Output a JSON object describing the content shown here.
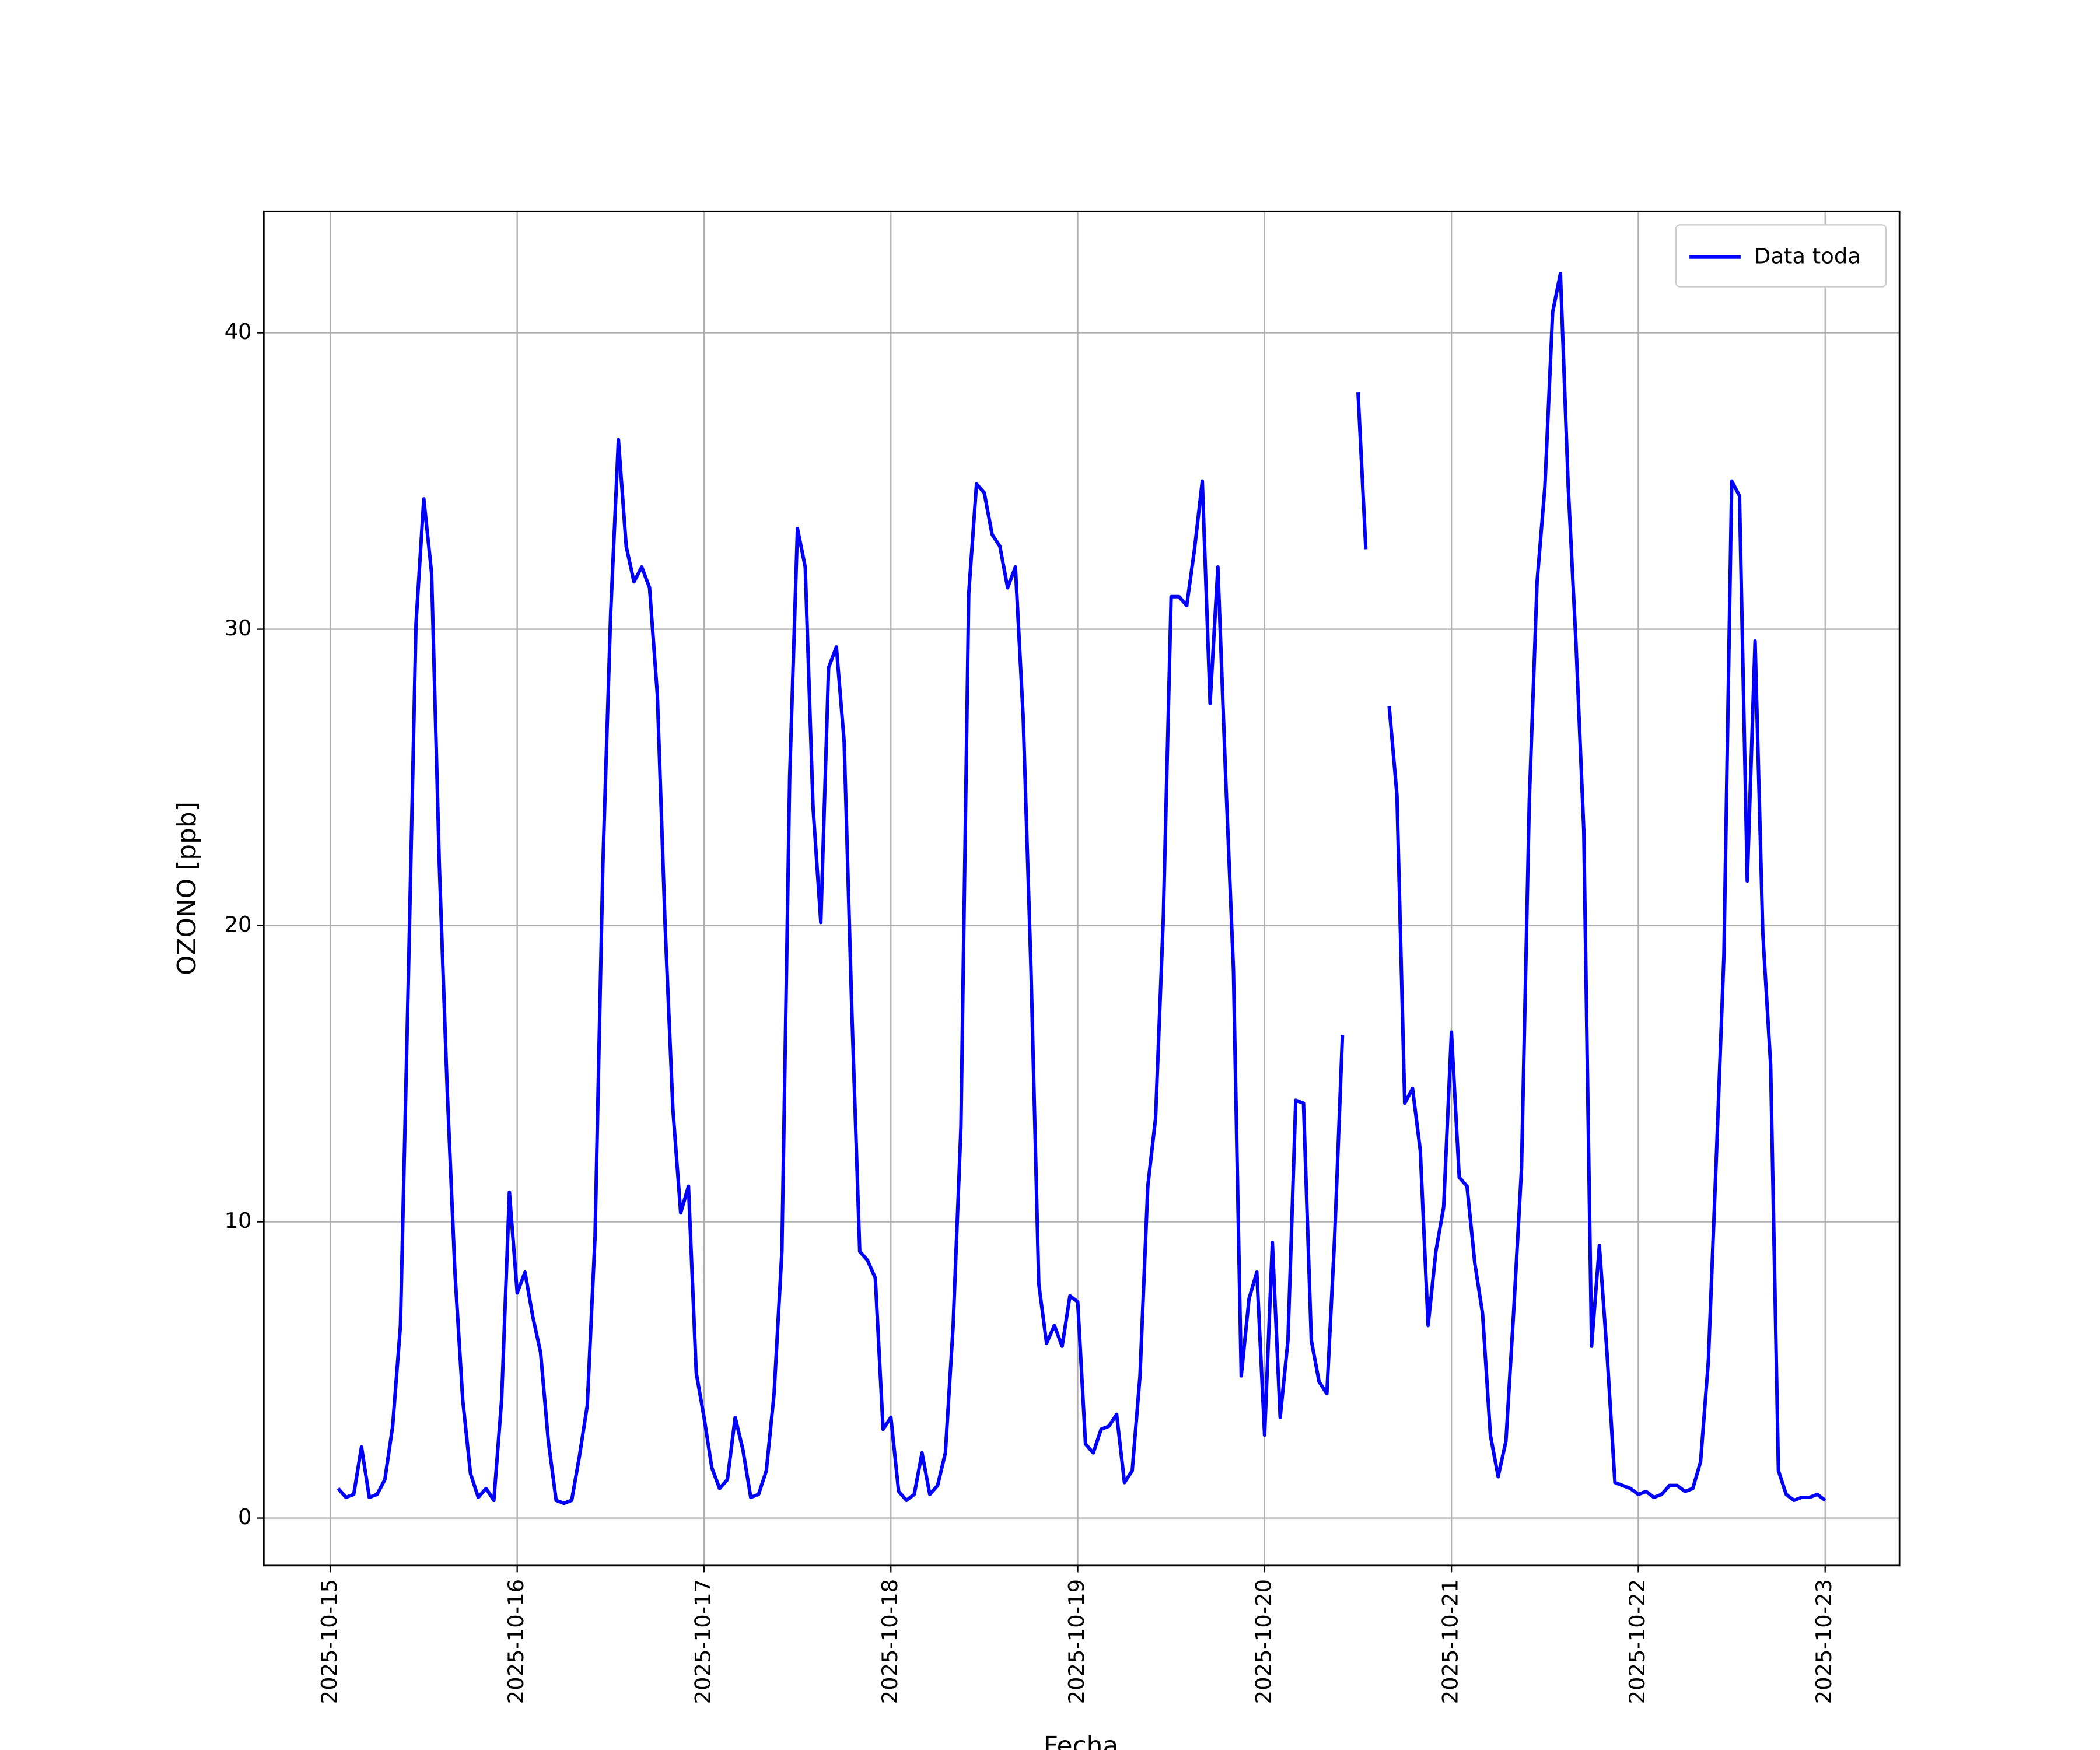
{
  "chart_data": {
    "type": "line",
    "xlabel": "Fecha",
    "ylabel": "OZONO [ppb]",
    "grid": true,
    "legend": "upper right",
    "xlim": [
      "2025-10-14 15:27",
      "2025-10-23 09:33"
    ],
    "xticks": [
      "2025-10-15",
      "2025-10-16",
      "2025-10-17",
      "2025-10-18",
      "2025-10-19",
      "2025-10-20",
      "2025-10-21",
      "2025-10-22",
      "2025-10-23"
    ],
    "ylim": [
      -1.6,
      44.1
    ],
    "yticks": [
      0,
      10,
      20,
      30,
      40
    ],
    "x": [
      "2025-10-15 01:00",
      "2025-10-15 02:00",
      "2025-10-15 03:00",
      "2025-10-15 04:00",
      "2025-10-15 05:00",
      "2025-10-15 06:00",
      "2025-10-15 07:00",
      "2025-10-15 08:00",
      "2025-10-15 09:00",
      "2025-10-15 10:00",
      "2025-10-15 11:00",
      "2025-10-15 12:00",
      "2025-10-15 13:00",
      "2025-10-15 14:00",
      "2025-10-15 15:00",
      "2025-10-15 16:00",
      "2025-10-15 17:00",
      "2025-10-15 18:00",
      "2025-10-15 19:00",
      "2025-10-15 20:00",
      "2025-10-15 21:00",
      "2025-10-15 22:00",
      "2025-10-15 23:00",
      "2025-10-16 00:00",
      "2025-10-16 01:00",
      "2025-10-16 02:00",
      "2025-10-16 03:00",
      "2025-10-16 04:00",
      "2025-10-16 05:00",
      "2025-10-16 06:00",
      "2025-10-16 07:00",
      "2025-10-16 08:00",
      "2025-10-16 09:00",
      "2025-10-16 10:00",
      "2025-10-16 11:00",
      "2025-10-16 12:00",
      "2025-10-16 13:00",
      "2025-10-16 14:00",
      "2025-10-16 15:00",
      "2025-10-16 16:00",
      "2025-10-16 17:00",
      "2025-10-16 18:00",
      "2025-10-16 19:00",
      "2025-10-16 20:00",
      "2025-10-16 21:00",
      "2025-10-16 22:00",
      "2025-10-16 23:00",
      "2025-10-17 00:00",
      "2025-10-17 01:00",
      "2025-10-17 02:00",
      "2025-10-17 03:00",
      "2025-10-17 04:00",
      "2025-10-17 05:00",
      "2025-10-17 06:00",
      "2025-10-17 07:00",
      "2025-10-17 08:00",
      "2025-10-17 09:00",
      "2025-10-17 10:00",
      "2025-10-17 11:00",
      "2025-10-17 12:00",
      "2025-10-17 13:00",
      "2025-10-17 14:00",
      "2025-10-17 15:00",
      "2025-10-17 16:00",
      "2025-10-17 17:00",
      "2025-10-17 18:00",
      "2025-10-17 19:00",
      "2025-10-17 20:00",
      "2025-10-17 21:00",
      "2025-10-17 22:00",
      "2025-10-17 23:00",
      "2025-10-18 00:00",
      "2025-10-18 01:00",
      "2025-10-18 02:00",
      "2025-10-18 03:00",
      "2025-10-18 04:00",
      "2025-10-18 05:00",
      "2025-10-18 06:00",
      "2025-10-18 07:00",
      "2025-10-18 08:00",
      "2025-10-18 09:00",
      "2025-10-18 10:00",
      "2025-10-18 11:00",
      "2025-10-18 12:00",
      "2025-10-18 13:00",
      "2025-10-18 14:00",
      "2025-10-18 15:00",
      "2025-10-18 16:00",
      "2025-10-18 17:00",
      "2025-10-18 18:00",
      "2025-10-18 19:00",
      "2025-10-18 20:00",
      "2025-10-18 21:00",
      "2025-10-18 22:00",
      "2025-10-18 23:00",
      "2025-10-19 00:00",
      "2025-10-19 01:00",
      "2025-10-19 02:00",
      "2025-10-19 03:00",
      "2025-10-19 04:00",
      "2025-10-19 05:00",
      "2025-10-19 06:00",
      "2025-10-19 07:00",
      "2025-10-19 08:00",
      "2025-10-19 09:00",
      "2025-10-19 10:00",
      "2025-10-19 11:00",
      "2025-10-19 12:00",
      "2025-10-19 13:00",
      "2025-10-19 14:00",
      "2025-10-19 15:00",
      "2025-10-19 16:00",
      "2025-10-19 17:00",
      "2025-10-19 18:00",
      "2025-10-19 19:00",
      "2025-10-19 20:00",
      "2025-10-19 21:00",
      "2025-10-19 22:00",
      "2025-10-19 23:00",
      "2025-10-20 00:00",
      "2025-10-20 01:00",
      "2025-10-20 02:00",
      "2025-10-20 03:00",
      "2025-10-20 04:00",
      "2025-10-20 05:00",
      "2025-10-20 06:00",
      "2025-10-20 07:00",
      "2025-10-20 08:00",
      "2025-10-20 09:00",
      "2025-10-20 10:00",
      "2025-10-20 11:00",
      "2025-10-20 12:00",
      "2025-10-20 13:00",
      "2025-10-20 14:00",
      "2025-10-20 15:00",
      "2025-10-20 16:00",
      "2025-10-20 17:00",
      "2025-10-20 18:00",
      "2025-10-20 19:00",
      "2025-10-20 20:00",
      "2025-10-20 21:00",
      "2025-10-20 22:00",
      "2025-10-20 23:00",
      "2025-10-21 00:00",
      "2025-10-21 01:00",
      "2025-10-21 02:00",
      "2025-10-21 03:00",
      "2025-10-21 04:00",
      "2025-10-21 05:00",
      "2025-10-21 06:00",
      "2025-10-21 07:00",
      "2025-10-21 08:00",
      "2025-10-21 09:00",
      "2025-10-21 10:00",
      "2025-10-21 11:00",
      "2025-10-21 12:00",
      "2025-10-21 13:00",
      "2025-10-21 14:00",
      "2025-10-21 15:00",
      "2025-10-21 16:00",
      "2025-10-21 17:00",
      "2025-10-21 18:00",
      "2025-10-21 19:00",
      "2025-10-21 20:00",
      "2025-10-21 21:00",
      "2025-10-21 22:00",
      "2025-10-21 23:00",
      "2025-10-22 00:00",
      "2025-10-22 01:00",
      "2025-10-22 02:00",
      "2025-10-22 03:00",
      "2025-10-22 04:00",
      "2025-10-22 05:00",
      "2025-10-22 06:00",
      "2025-10-22 07:00",
      "2025-10-22 08:00",
      "2025-10-22 09:00",
      "2025-10-22 10:00",
      "2025-10-22 11:00",
      "2025-10-22 12:00",
      "2025-10-22 13:00",
      "2025-10-22 14:00",
      "2025-10-22 15:00",
      "2025-10-22 16:00",
      "2025-10-22 17:00",
      "2025-10-22 18:00",
      "2025-10-22 19:00",
      "2025-10-22 20:00",
      "2025-10-22 21:00",
      "2025-10-22 22:00",
      "2025-10-22 23:00",
      "2025-10-23 00:00"
    ],
    "series": [
      {
        "name": "Data toda",
        "color": "#0000ff",
        "values": [
          1.0,
          0.7,
          0.8,
          2.4,
          0.7,
          0.8,
          1.3,
          3.1,
          6.5,
          18,
          30.2,
          34.4,
          31.9,
          22,
          14.5,
          8.3,
          4.0,
          1.5,
          0.7,
          1.0,
          0.6,
          4.0,
          11.0,
          7.6,
          8.3,
          6.8,
          5.6,
          2.6,
          0.6,
          0.5,
          0.6,
          2.1,
          3.8,
          9.5,
          22,
          30.5,
          36.4,
          32.8,
          31.6,
          32.1,
          31.4,
          27.8,
          20,
          13.8,
          10.3,
          11.2,
          4.9,
          3.4,
          1.7,
          1.0,
          1.3,
          3.4,
          2.3,
          0.7,
          0.8,
          1.6,
          4.2,
          9.0,
          25,
          33.4,
          32.1,
          24,
          20.1,
          28.7,
          29.4,
          26.2,
          17,
          9.0,
          8.7,
          8.1,
          3.0,
          3.4,
          0.9,
          0.6,
          0.8,
          2.2,
          0.8,
          1.1,
          2.2,
          6.5,
          13.2,
          31.2,
          34.9,
          34.6,
          33.2,
          32.8,
          31.4,
          32.1,
          27,
          18.5,
          7.9,
          5.9,
          6.5,
          5.8,
          7.5,
          7.3,
          2.5,
          2.2,
          3.0,
          3.1,
          3.5,
          1.2,
          1.6,
          4.8,
          11.2,
          13.5,
          20.3,
          31.1,
          31.1,
          30.8,
          32.7,
          35.0,
          27.5,
          32.1,
          25,
          18.5,
          4.8,
          7.4,
          8.3,
          2.8,
          9.3,
          3.4,
          6.0,
          14.1,
          14.0,
          6.0,
          4.6,
          4.2,
          9.5,
          16.3,
          null,
          38.0,
          32.7,
          null,
          null,
          27.4,
          24.4,
          14.0,
          14.5,
          12.4,
          6.5,
          9.0,
          10.5,
          16.4,
          11.5,
          11.2,
          8.6,
          6.9,
          2.8,
          1.4,
          2.6,
          7.0,
          11.8,
          24.2,
          31.6,
          34.8,
          40.7,
          42.0,
          34.8,
          29.5,
          23.2,
          5.8,
          9.2,
          5.5,
          1.2,
          1.1,
          1.0,
          0.8,
          0.9,
          0.7,
          0.8,
          1.1,
          1.1,
          0.9,
          1.0,
          1.9,
          5.3,
          12,
          19,
          35.0,
          34.5,
          21.5,
          29.6,
          19.7,
          15.3,
          1.6,
          0.8,
          0.6,
          0.7,
          0.7,
          0.8,
          0.6
        ]
      }
    ]
  }
}
